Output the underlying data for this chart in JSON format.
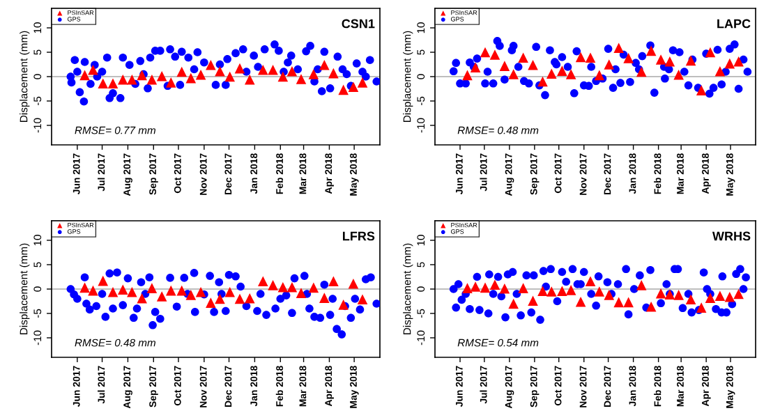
{
  "chart_data": [
    {
      "type": "scatter",
      "title": "CSN1",
      "ylabel": "Displacement (mm)",
      "annotations": [
        "RMSE= 0.77 mm"
      ],
      "legend": "top left",
      "grid": false,
      "xlim": [
        "2017-05-01",
        "2018-06-01"
      ],
      "xticks": [
        {
          "value": "2017-06-01",
          "label": "Jun 2017"
        },
        {
          "value": "2017-07-01",
          "label": "Jul 2017"
        },
        {
          "value": "2017-08-01",
          "label": "Aug 2017"
        },
        {
          "value": "2017-09-01",
          "label": "Sep 2017"
        },
        {
          "value": "2017-10-01",
          "label": "Oct 2017"
        },
        {
          "value": "2017-11-01",
          "label": "Nov 2017"
        },
        {
          "value": "2017-12-01",
          "label": "Dec 2017"
        },
        {
          "value": "2018-01-01",
          "label": "Jan 2018"
        },
        {
          "value": "2018-02-01",
          "label": "Feb 2018"
        },
        {
          "value": "2018-03-01",
          "label": "Mar 2018"
        },
        {
          "value": "2018-04-01",
          "label": "Apr 2018"
        },
        {
          "value": "2018-05-01",
          "label": "May 2018"
        }
      ],
      "ylim": [
        -14,
        14
      ],
      "yticks": [
        -10,
        -5,
        0,
        5,
        10
      ],
      "ref_lines": [
        {
          "axis": "y",
          "value": 0,
          "color": "#bebebe"
        }
      ],
      "series": [
        {
          "name": "PSInSAR",
          "color": "#ff0000",
          "marker": "triangle",
          "x": [
            "2017-06-10",
            "2017-06-20",
            "2017-07-02",
            "2017-07-14",
            "2017-07-26",
            "2017-08-06",
            "2017-08-18",
            "2017-08-30",
            "2017-09-11",
            "2017-09-22",
            "2017-10-05",
            "2017-10-16",
            "2017-10-28",
            "2017-11-09",
            "2017-11-20",
            "2017-12-02",
            "2017-12-14",
            "2017-12-26",
            "2018-01-11",
            "2018-01-23",
            "2018-02-04",
            "2018-02-15",
            "2018-02-26",
            "2018-03-13",
            "2018-03-26",
            "2018-04-06",
            "2018-04-18",
            "2018-04-30",
            "2018-05-11"
          ],
          "values": [
            0.3,
            1.4,
            -1.4,
            -1.4,
            -0.6,
            -0.6,
            0.3,
            -0.6,
            0.1,
            -1.2,
            1.0,
            -0.3,
            0.4,
            2.4,
            1.1,
            0,
            1.7,
            -0.6,
            1.4,
            1.4,
            0,
            1.1,
            -0.5,
            0.5,
            2.4,
            0.7,
            -2.7,
            -2.1,
            -1.2
          ]
        },
        {
          "name": "GPS",
          "color": "#0000ff",
          "marker": "circle",
          "x": [
            "2017-05-24",
            "2017-05-25",
            "2017-05-29",
            "2017-06-01",
            "2017-06-04",
            "2017-06-09",
            "2017-06-10",
            "2017-06-17",
            "2017-06-22",
            "2017-06-25",
            "2017-07-01",
            "2017-07-07",
            "2017-07-10",
            "2017-07-14",
            "2017-07-23",
            "2017-07-26",
            "2017-08-03",
            "2017-08-10",
            "2017-08-16",
            "2017-08-20",
            "2017-08-25",
            "2017-08-28",
            "2017-09-03",
            "2017-09-09",
            "2017-09-18",
            "2017-09-21",
            "2017-09-27",
            "2017-10-03",
            "2017-10-05",
            "2017-10-13",
            "2017-10-20",
            "2017-10-24",
            "2017-11-01",
            "2017-11-15",
            "2017-11-20",
            "2017-11-27",
            "2017-11-29",
            "2017-12-09",
            "2017-12-18",
            "2017-12-22",
            "2017-12-31",
            "2018-01-05",
            "2018-01-13",
            "2018-01-25",
            "2018-01-30",
            "2018-02-05",
            "2018-02-10",
            "2018-02-14",
            "2018-02-22",
            "2018-03-04",
            "2018-03-09",
            "2018-03-14",
            "2018-03-18",
            "2018-03-23",
            "2018-03-26",
            "2018-04-02",
            "2018-04-11",
            "2018-04-17",
            "2018-04-22",
            "2018-04-27",
            "2018-05-04",
            "2018-05-11",
            "2018-05-15",
            "2018-05-20",
            "2018-05-28"
          ],
          "values": [
            0,
            -1.2,
            3.4,
            1.0,
            -3.2,
            -5.1,
            3.0,
            -1.5,
            2.4,
            0,
            1.0,
            3.9,
            -4.4,
            -3.4,
            -4.4,
            3.9,
            2.4,
            -1.5,
            3.2,
            0.5,
            -2.4,
            3.9,
            5.3,
            5.3,
            -1.9,
            5.6,
            4.1,
            -1.7,
            5.1,
            3.9,
            1.5,
            5.0,
            2.9,
            -1.7,
            2.5,
            -1.7,
            3.6,
            4.8,
            5.6,
            1.0,
            4.3,
            2.0,
            5.6,
            6.6,
            5.3,
            1.0,
            2.9,
            4.3,
            1.5,
            5.2,
            6.3,
            -1.0,
            1.5,
            -3.0,
            5.1,
            -2.4,
            4.1,
            1.5,
            0.5,
            -1.9,
            2.7,
            1.0,
            0,
            3.4,
            -1.0
          ]
        }
      ]
    },
    {
      "type": "scatter",
      "title": "LAPC",
      "ylabel": "Displacement (mm)",
      "annotations": [
        "RMSE= 0.48 mm"
      ],
      "legend": "top left",
      "grid": false,
      "xlim": [
        "2017-05-01",
        "2018-06-01"
      ],
      "xticks": [
        {
          "value": "2017-06-01",
          "label": "Jun 2017"
        },
        {
          "value": "2017-07-01",
          "label": "Jul 2017"
        },
        {
          "value": "2017-08-01",
          "label": "Aug 2017"
        },
        {
          "value": "2017-09-01",
          "label": "Sep 2017"
        },
        {
          "value": "2017-10-01",
          "label": "Oct 2017"
        },
        {
          "value": "2017-11-01",
          "label": "Nov 2017"
        },
        {
          "value": "2017-12-01",
          "label": "Dec 2017"
        },
        {
          "value": "2018-01-01",
          "label": "Jan 2018"
        },
        {
          "value": "2018-02-01",
          "label": "Feb 2018"
        },
        {
          "value": "2018-03-01",
          "label": "Mar 2018"
        },
        {
          "value": "2018-04-01",
          "label": "Apr 2018"
        },
        {
          "value": "2018-05-01",
          "label": "May 2018"
        }
      ],
      "ylim": [
        -14,
        14
      ],
      "yticks": [
        -10,
        -5,
        0,
        5,
        10
      ],
      "ref_lines": [
        {
          "axis": "y",
          "value": 0,
          "color": "#bebebe"
        }
      ],
      "series": [
        {
          "name": "PSInSAR",
          "color": "#ff0000",
          "marker": "triangle",
          "x": [
            "2017-06-10",
            "2017-06-20",
            "2017-07-02",
            "2017-07-14",
            "2017-07-26",
            "2017-08-06",
            "2017-08-18",
            "2017-08-30",
            "2017-09-11",
            "2017-09-22",
            "2017-10-05",
            "2017-10-16",
            "2017-10-28",
            "2017-11-09",
            "2017-11-20",
            "2017-12-02",
            "2017-12-14",
            "2017-12-26",
            "2018-01-11",
            "2018-01-23",
            "2018-02-04",
            "2018-02-15",
            "2018-02-26",
            "2018-03-13",
            "2018-03-26",
            "2018-04-06",
            "2018-04-18",
            "2018-04-30",
            "2018-05-11"
          ],
          "values": [
            0.3,
            1.9,
            5.0,
            4.5,
            2.2,
            0.5,
            3.9,
            2.4,
            -1.0,
            0.6,
            1.2,
            0.5,
            4.0,
            3.9,
            0.3,
            2.5,
            5.9,
            3.8,
            1.0,
            5.3,
            3.5,
            3.1,
            0.4,
            3.3,
            -2.8,
            5.0,
            1.1,
            2.7,
            3.1
          ]
        },
        {
          "name": "GPS",
          "color": "#0000ff",
          "marker": "circle",
          "x": [
            "2017-05-24",
            "2017-05-27",
            "2017-06-01",
            "2017-06-08",
            "2017-06-13",
            "2017-06-18",
            "2017-06-22",
            "2017-07-02",
            "2017-07-05",
            "2017-07-12",
            "2017-07-17",
            "2017-07-20",
            "2017-07-26",
            "2017-08-04",
            "2017-08-06",
            "2017-08-12",
            "2017-08-19",
            "2017-08-25",
            "2017-09-03",
            "2017-09-07",
            "2017-09-14",
            "2017-09-20",
            "2017-09-26",
            "2017-09-28",
            "2017-10-05",
            "2017-10-12",
            "2017-10-20",
            "2017-10-23",
            "2017-11-01",
            "2017-11-07",
            "2017-11-10",
            "2017-11-16",
            "2017-11-24",
            "2017-12-01",
            "2017-12-07",
            "2017-12-10",
            "2017-12-16",
            "2017-12-20",
            "2017-12-28",
            "2018-01-04",
            "2018-01-08",
            "2018-01-12",
            "2018-01-22",
            "2018-01-27",
            "2018-02-08",
            "2018-02-09",
            "2018-02-14",
            "2018-02-19",
            "2018-02-27",
            "2018-03-05",
            "2018-03-10",
            "2018-03-15",
            "2018-03-22",
            "2018-04-01",
            "2018-04-05",
            "2018-04-10",
            "2018-04-15",
            "2018-04-20",
            "2018-04-25",
            "2018-04-30",
            "2018-05-06",
            "2018-05-11",
            "2018-05-17",
            "2018-05-22"
          ],
          "values": [
            1.1,
            2.8,
            -1.4,
            -1.4,
            2.9,
            2.0,
            3.7,
            -1.4,
            1.0,
            -1.4,
            7.3,
            6.3,
            -0.6,
            5.4,
            6.3,
            2.0,
            -0.9,
            -1.4,
            6.1,
            -1.8,
            -3.8,
            5.4,
            3.0,
            2.5,
            4.0,
            2.0,
            -3.4,
            5.2,
            -1.8,
            -1.9,
            2.0,
            -0.9,
            -0.4,
            5.7,
            -2.3,
            1.5,
            -1.3,
            4.5,
            -1.1,
            2.8,
            1.5,
            4.2,
            6.4,
            -3.3,
            2.0,
            -0.4,
            1.5,
            5.4,
            5.0,
            1.0,
            -1.8,
            3.5,
            -2.3,
            4.7,
            -3.5,
            -2.3,
            5.5,
            -1.6,
            1.0,
            5.7,
            6.6,
            -2.5,
            3.5,
            1.0
          ]
        }
      ]
    },
    {
      "type": "scatter",
      "title": "LFRS",
      "ylabel": "Displacement (mm)",
      "annotations": [
        "RMSE= 0.48 mm"
      ],
      "legend": "top left",
      "grid": false,
      "xlim": [
        "2017-05-01",
        "2018-06-01"
      ],
      "xticks": [
        {
          "value": "2017-06-01",
          "label": "Jun 2017"
        },
        {
          "value": "2017-07-01",
          "label": "Jul 2017"
        },
        {
          "value": "2017-08-01",
          "label": "Aug 2017"
        },
        {
          "value": "2017-09-01",
          "label": "Sep 2017"
        },
        {
          "value": "2017-10-01",
          "label": "Oct 2017"
        },
        {
          "value": "2017-11-01",
          "label": "Nov 2017"
        },
        {
          "value": "2017-12-01",
          "label": "Dec 2017"
        },
        {
          "value": "2018-01-01",
          "label": "Jan 2018"
        },
        {
          "value": "2018-02-01",
          "label": "Feb 2018"
        },
        {
          "value": "2018-03-01",
          "label": "Mar 2018"
        },
        {
          "value": "2018-04-01",
          "label": "Apr 2018"
        },
        {
          "value": "2018-05-01",
          "label": "May 2018"
        }
      ],
      "ylim": [
        -14,
        14
      ],
      "yticks": [
        -10,
        -5,
        0,
        5,
        10
      ],
      "ref_lines": [
        {
          "axis": "y",
          "value": 0,
          "color": "#bebebe"
        }
      ],
      "series": [
        {
          "name": "PSInSAR",
          "color": "#ff0000",
          "marker": "triangle",
          "x": [
            "2017-06-10",
            "2017-06-20",
            "2017-07-02",
            "2017-07-14",
            "2017-07-26",
            "2017-08-06",
            "2017-08-18",
            "2017-08-30",
            "2017-09-11",
            "2017-09-22",
            "2017-10-05",
            "2017-10-16",
            "2017-10-28",
            "2017-11-09",
            "2017-11-20",
            "2017-12-02",
            "2017-12-14",
            "2017-12-26",
            "2018-01-11",
            "2018-01-23",
            "2018-02-04",
            "2018-02-15",
            "2018-02-26",
            "2018-03-13",
            "2018-03-26",
            "2018-04-06",
            "2018-04-18",
            "2018-04-30",
            "2018-05-11"
          ],
          "values": [
            0.3,
            -0.3,
            1.7,
            -0.6,
            -0.1,
            -0.6,
            -1.9,
            0.2,
            -1.5,
            -0.3,
            -0.3,
            -1.2,
            -0.6,
            -2.8,
            -2.0,
            -0.6,
            -2.0,
            -1.9,
            1.6,
            0.8,
            0.4,
            0.4,
            -0.8,
            0.3,
            -1.8,
            1.6,
            -3.2,
            1.1,
            -2.1
          ]
        },
        {
          "name": "GPS",
          "color": "#0000ff",
          "marker": "circle",
          "x": [
            "2017-05-24",
            "2017-05-28",
            "2017-06-01",
            "2017-06-10",
            "2017-06-12",
            "2017-06-16",
            "2017-06-24",
            "2017-07-01",
            "2017-07-05",
            "2017-07-10",
            "2017-07-14",
            "2017-07-19",
            "2017-07-26",
            "2017-08-01",
            "2017-08-08",
            "2017-08-12",
            "2017-08-17",
            "2017-08-22",
            "2017-08-27",
            "2017-08-31",
            "2017-09-03",
            "2017-09-09",
            "2017-09-21",
            "2017-09-29",
            "2017-10-08",
            "2017-10-12",
            "2017-10-20",
            "2017-10-21",
            "2017-11-01",
            "2017-11-08",
            "2017-11-13",
            "2017-11-19",
            "2017-11-22",
            "2017-11-27",
            "2017-12-01",
            "2017-12-09",
            "2017-12-15",
            "2017-12-22",
            "2018-01-04",
            "2018-01-08",
            "2018-01-15",
            "2018-01-26",
            "2018-02-01",
            "2018-02-08",
            "2018-02-15",
            "2018-02-18",
            "2018-03-02",
            "2018-03-05",
            "2018-03-08",
            "2018-03-14",
            "2018-03-21",
            "2018-03-26",
            "2018-04-02",
            "2018-04-05",
            "2018-04-10",
            "2018-04-16",
            "2018-04-20",
            "2018-04-27",
            "2018-05-02",
            "2018-05-08",
            "2018-05-15",
            "2018-05-21",
            "2018-05-28"
          ],
          "values": [
            0,
            -1.1,
            -2.0,
            2.4,
            -3.0,
            -4.2,
            -3.5,
            -1.0,
            -5.7,
            3.2,
            -4.0,
            3.4,
            -3.3,
            2.2,
            -5.9,
            -4.0,
            1.4,
            -1.0,
            2.4,
            -7.4,
            -4.7,
            -6.1,
            2.3,
            -3.6,
            2.3,
            -1.0,
            3.3,
            -4.7,
            -1.1,
            2.7,
            -4.7,
            1.4,
            -1.0,
            -4.5,
            2.9,
            2.6,
            0.5,
            -3.5,
            -4.5,
            -1.0,
            -5.3,
            -4.0,
            -2.0,
            -1.3,
            -4.9,
            2.2,
            2.7,
            -1.0,
            -4.0,
            -5.7,
            -5.9,
            0.9,
            -5.3,
            -2.0,
            -8.2,
            -9.3,
            -3.5,
            -5.9,
            -2.0,
            -4.2,
            2.0,
            2.4,
            -3.0
          ]
        }
      ]
    },
    {
      "type": "scatter",
      "title": "WRHS",
      "ylabel": "Displacement (mm)",
      "annotations": [
        "RMSE= 0.54 mm"
      ],
      "legend": "top left",
      "grid": false,
      "xlim": [
        "2017-05-01",
        "2018-06-01"
      ],
      "xticks": [
        {
          "value": "2017-06-01",
          "label": "Jun 2017"
        },
        {
          "value": "2017-07-01",
          "label": "Jul 2017"
        },
        {
          "value": "2017-08-01",
          "label": "Aug 2017"
        },
        {
          "value": "2017-09-01",
          "label": "Sep 2017"
        },
        {
          "value": "2017-10-01",
          "label": "Oct 2017"
        },
        {
          "value": "2017-11-01",
          "label": "Nov 2017"
        },
        {
          "value": "2017-12-01",
          "label": "Dec 2017"
        },
        {
          "value": "2018-01-01",
          "label": "Jan 2018"
        },
        {
          "value": "2018-02-01",
          "label": "Feb 2018"
        },
        {
          "value": "2018-03-01",
          "label": "Mar 2018"
        },
        {
          "value": "2018-04-01",
          "label": "Apr 2018"
        },
        {
          "value": "2018-05-01",
          "label": "May 2018"
        }
      ],
      "ylim": [
        -14,
        14
      ],
      "yticks": [
        -10,
        -5,
        0,
        5,
        10
      ],
      "ref_lines": [
        {
          "axis": "y",
          "value": 0,
          "color": "#bebebe"
        }
      ],
      "series": [
        {
          "name": "PSInSAR",
          "color": "#ff0000",
          "marker": "triangle",
          "x": [
            "2017-06-10",
            "2017-06-20",
            "2017-07-02",
            "2017-07-14",
            "2017-07-26",
            "2017-08-06",
            "2017-08-18",
            "2017-08-30",
            "2017-09-11",
            "2017-09-22",
            "2017-10-05",
            "2017-10-16",
            "2017-10-28",
            "2017-11-09",
            "2017-11-20",
            "2017-12-02",
            "2017-12-14",
            "2017-12-26",
            "2018-01-11",
            "2018-01-23",
            "2018-02-04",
            "2018-02-15",
            "2018-02-26",
            "2018-03-13",
            "2018-03-26",
            "2018-04-06",
            "2018-04-18",
            "2018-04-30",
            "2018-05-11"
          ],
          "values": [
            0.2,
            0.5,
            0.3,
            0.9,
            0.1,
            -3.0,
            0.2,
            -2.4,
            -0.4,
            -0.5,
            -0.4,
            -0.2,
            -2.6,
            1.6,
            -0.5,
            -1.2,
            -2.7,
            -2.7,
            0.8,
            -3.6,
            -0.9,
            -1.1,
            -1.2,
            -2.1,
            -3.8,
            -1.8,
            -1.4,
            -1.6,
            -1.0
          ]
        },
        {
          "name": "GPS",
          "color": "#0000ff",
          "marker": "circle",
          "x": [
            "2017-05-24",
            "2017-05-27",
            "2017-05-30",
            "2017-06-03",
            "2017-06-08",
            "2017-06-13",
            "2017-06-22",
            "2017-06-25",
            "2017-07-06",
            "2017-07-07",
            "2017-07-12",
            "2017-07-18",
            "2017-07-22",
            "2017-07-27",
            "2017-07-30",
            "2017-08-05",
            "2017-08-10",
            "2017-08-15",
            "2017-08-22",
            "2017-08-28",
            "2017-08-31",
            "2017-09-08",
            "2017-09-12",
            "2017-09-15",
            "2017-09-21",
            "2017-09-29",
            "2017-10-05",
            "2017-10-10",
            "2017-10-18",
            "2017-10-24",
            "2017-10-28",
            "2017-11-01",
            "2017-11-10",
            "2017-11-16",
            "2017-11-19",
            "2017-11-30",
            "2017-12-05",
            "2017-12-13",
            "2017-12-23",
            "2017-12-26",
            "2018-01-02",
            "2018-01-09",
            "2018-01-17",
            "2018-01-22",
            "2018-02-04",
            "2018-02-11",
            "2018-02-15",
            "2018-02-21",
            "2018-02-25",
            "2018-03-03",
            "2018-03-10",
            "2018-03-14",
            "2018-03-23",
            "2018-03-29",
            "2018-04-02",
            "2018-04-06",
            "2018-04-13",
            "2018-04-20",
            "2018-04-21",
            "2018-04-26",
            "2018-05-03",
            "2018-05-08",
            "2018-05-13",
            "2018-05-17",
            "2018-05-20"
          ],
          "values": [
            0,
            -3.8,
            1.0,
            -2.2,
            -1.0,
            -4.1,
            2.5,
            -4.3,
            -5.0,
            3.0,
            -1.0,
            2.5,
            -1.5,
            -5.8,
            3.0,
            3.5,
            -1.0,
            -5.4,
            2.8,
            -4.8,
            2.8,
            -6.3,
            3.7,
            0.5,
            4.1,
            -2.5,
            3.5,
            1.5,
            4.1,
            1.0,
            1.0,
            3.5,
            -1.0,
            -3.4,
            2.6,
            1.4,
            -1.0,
            1.0,
            4.1,
            -5.2,
            0,
            2.8,
            -3.8,
            3.9,
            -2.9,
            1.0,
            -1.0,
            4.1,
            4.1,
            -3.9,
            -1.0,
            -4.8,
            -4.3,
            3.4,
            0,
            -1.0,
            -4.1,
            -4.8,
            2.6,
            -4.8,
            -3.1,
            3.1,
            4.1,
            0,
            2.4
          ]
        }
      ]
    }
  ]
}
